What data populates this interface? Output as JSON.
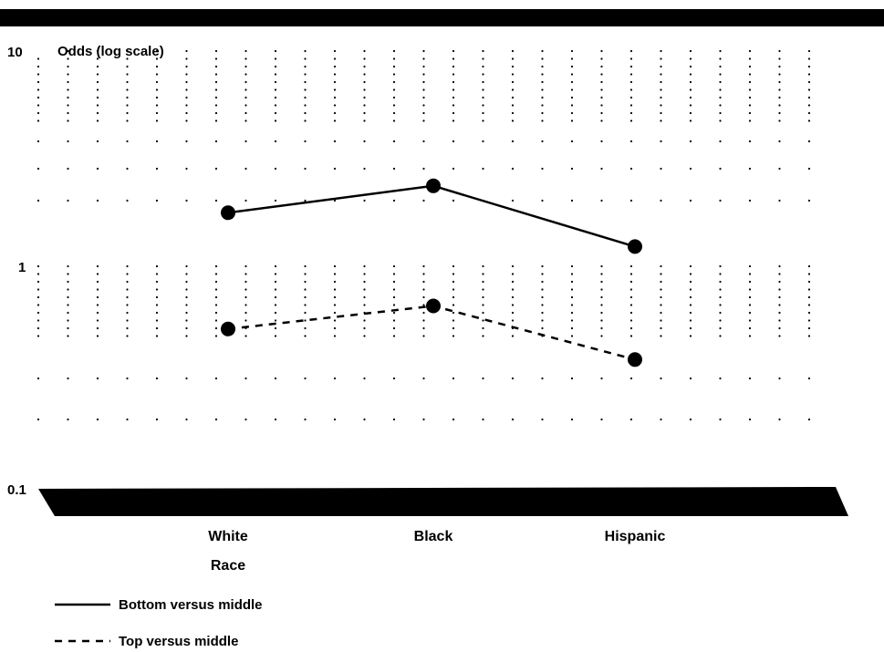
{
  "chart_data": {
    "type": "line",
    "ylabel": "Odds (log scale)",
    "xlabel": "Race",
    "y_scale": "log",
    "ylim": [
      0.1,
      10
    ],
    "y_ticks": [
      "10",
      "1",
      "0.1"
    ],
    "grid": true,
    "categories": [
      "White",
      "Black",
      "Hispanic"
    ],
    "series": [
      {
        "name": "Bottom versus middle",
        "style": "solid",
        "values": [
          1.85,
          2.45,
          1.3
        ]
      },
      {
        "name": "Top versus middle",
        "style": "dashed",
        "values": [
          0.55,
          0.7,
          0.4
        ]
      }
    ],
    "legend_position": "bottom-left",
    "colors": {
      "line": "#000000",
      "band": "#000000",
      "grid": "#000000"
    }
  }
}
